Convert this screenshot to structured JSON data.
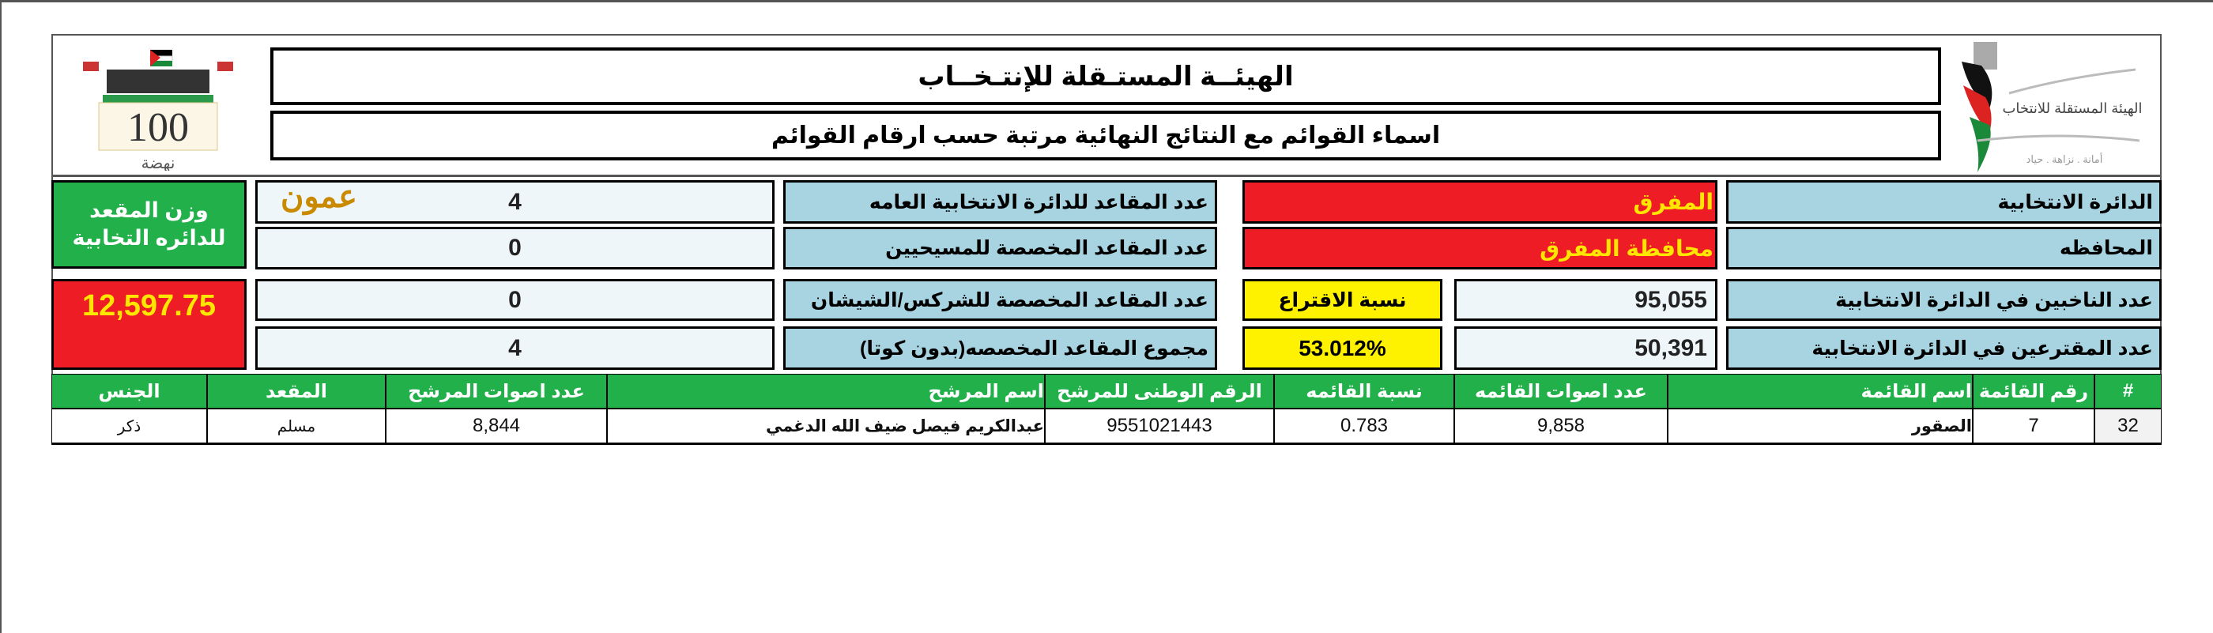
{
  "header": {
    "title": "الهيئــة المستـقلة للإنتـخــاب",
    "subtitle": "اسماء القوائم مع النتائج النهائية مرتبة حسب ارقام القوائم",
    "left_logo": {
      "number": "100",
      "caption": "نهضة"
    },
    "right_logo": {
      "name": "الهيئة المستقلة للانتخاب",
      "motto": "أمانة . نزاهة . حياد"
    },
    "watermark": "عمون"
  },
  "seat_weight": {
    "label": "وزن المقعد للدائره التخابية",
    "value": "12,597.75"
  },
  "seats": [
    {
      "label": "عدد المقاعد للدائرة الانتخابية العامه",
      "value": "4"
    },
    {
      "label": "عدد المقاعد المخصصة للمسيحيين",
      "value": "0"
    },
    {
      "label": "عدد المقاعد المخصصة للشركس/الشيشان",
      "value": "0"
    },
    {
      "label": "مجموع المقاعد المخصصه(بدون كوتا)",
      "value": "4"
    }
  ],
  "district": {
    "label": "الدائرة الانتخابية",
    "value": "المفرق"
  },
  "governorate": {
    "label": "المحافظه",
    "value": "محافظة المفرق"
  },
  "voters": {
    "label": "عدد الناخبين في الدائرة الانتخابية",
    "value": "95,055"
  },
  "turnout_label": "نسبة الاقتراع",
  "turnout_value": "53.012%",
  "voted": {
    "label": "عدد المقترعين في الدائرة الانتخابية",
    "value": "50,391"
  },
  "table": {
    "headers": [
      "#",
      "رقم القائمة",
      "اسم القائمة",
      "عدد اصوات القائمه",
      "نسبة القائمه",
      "الرقم الوطنى للمرشح",
      "اسم المرشح",
      "عدد اصوات المرشح",
      "المقعد",
      "الجنس"
    ],
    "rows": [
      [
        "32",
        "7",
        "الصقور",
        "9,858",
        "0.783",
        "9551021443",
        "عبدالكريم فيصل ضيف الله الدغمي",
        "8,844",
        "مسلم",
        "ذكر"
      ]
    ]
  },
  "colors": {
    "green": "#22b04b",
    "red": "#ee1c25",
    "yellow": "#fff200",
    "label_blue": "#a8d4e2"
  }
}
